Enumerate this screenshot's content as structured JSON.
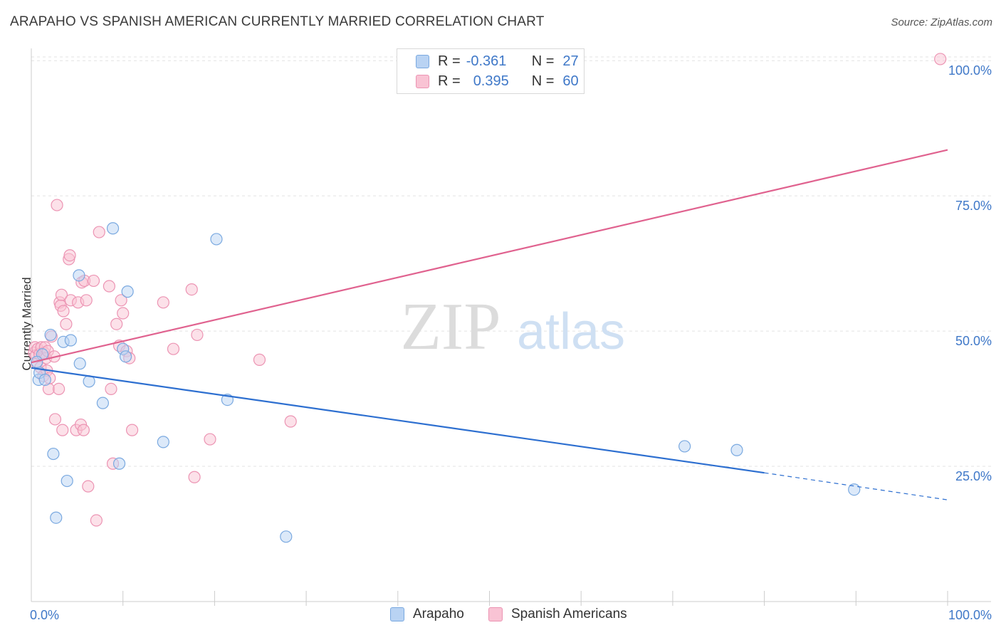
{
  "header": {
    "title": "ARAPAHO VS SPANISH AMERICAN CURRENTLY MARRIED CORRELATION CHART",
    "source": "Source: ZipAtlas.com"
  },
  "watermark": {
    "zip": "ZIP",
    "atlas": "atlas"
  },
  "legend": {
    "rows": [
      {
        "r_label": "R =",
        "r_value": "-0.361",
        "n_label": "N =",
        "n_value": "27"
      },
      {
        "r_label": "R =",
        "r_value": "0.395",
        "n_label": "N =",
        "n_value": "60"
      }
    ]
  },
  "bottom_legend": {
    "arapaho": "Arapaho",
    "spanish": "Spanish Americans"
  },
  "colors": {
    "arapaho_fill": "#b9d3f3",
    "arapaho_stroke": "#7aa9e0",
    "arapaho_line": "#2d6fd0",
    "spanish_fill": "#f9c3d4",
    "spanish_stroke": "#ec94b3",
    "spanish_line": "#e0628f",
    "tick_text": "#3f78c8"
  },
  "chart_data": {
    "type": "scatter",
    "title": "ARAPAHO VS SPANISH AMERICAN CURRENTLY MARRIED CORRELATION CHART",
    "xlabel": "",
    "ylabel": "Currently Married",
    "xlim": [
      0,
      100
    ],
    "ylim": [
      0,
      102
    ],
    "x_tick_labels": [
      "0.0%",
      "100.0%"
    ],
    "y_ticks": [
      {
        "value": 25,
        "label": "25.0%"
      },
      {
        "value": 50,
        "label": "50.0%"
      },
      {
        "value": 75,
        "label": "75.0%"
      },
      {
        "value": 100,
        "label": "100.0%"
      }
    ],
    "series": [
      {
        "name": "Arapaho",
        "r": -0.361,
        "n": 27,
        "trend": {
          "x0": 0,
          "y0": 43.2,
          "x1": 80,
          "y1": 23.8,
          "dash_to_x": 100,
          "dash_to_y": 18.8
        },
        "points": [
          [
            0.8,
            41.0
          ],
          [
            0.9,
            42.3
          ],
          [
            1.5,
            41.0
          ],
          [
            2.1,
            49.3
          ],
          [
            2.4,
            27.3
          ],
          [
            2.7,
            15.5
          ],
          [
            3.5,
            48.0
          ],
          [
            3.9,
            22.3
          ],
          [
            4.3,
            48.3
          ],
          [
            5.2,
            60.3
          ],
          [
            5.3,
            44.0
          ],
          [
            6.3,
            40.7
          ],
          [
            7.8,
            36.7
          ],
          [
            8.9,
            69.0
          ],
          [
            9.6,
            25.5
          ],
          [
            10.0,
            46.7
          ],
          [
            10.3,
            45.3
          ],
          [
            10.5,
            57.3
          ],
          [
            14.4,
            29.5
          ],
          [
            20.2,
            67.0
          ],
          [
            21.4,
            37.3
          ],
          [
            27.8,
            12.0
          ],
          [
            71.3,
            28.7
          ],
          [
            89.8,
            20.7
          ],
          [
            77.0,
            28.0
          ],
          [
            1.2,
            45.7
          ],
          [
            0.6,
            44.3
          ]
        ]
      },
      {
        "name": "Spanish Americans",
        "r": 0.395,
        "n": 60,
        "trend": {
          "x0": 0,
          "y0": 44.2,
          "x1": 100,
          "y1": 83.5
        },
        "points": [
          [
            0.3,
            46.0
          ],
          [
            0.4,
            47.0
          ],
          [
            0.5,
            45.5
          ],
          [
            0.6,
            44.0
          ],
          [
            0.7,
            46.7
          ],
          [
            0.9,
            45.7
          ],
          [
            1.0,
            43.3
          ],
          [
            1.1,
            47.0
          ],
          [
            1.3,
            41.7
          ],
          [
            1.4,
            46.0
          ],
          [
            1.5,
            47.0
          ],
          [
            1.6,
            45.0
          ],
          [
            1.7,
            42.7
          ],
          [
            1.8,
            46.3
          ],
          [
            1.9,
            39.3
          ],
          [
            2.0,
            41.3
          ],
          [
            2.2,
            49.0
          ],
          [
            2.5,
            45.3
          ],
          [
            2.6,
            33.7
          ],
          [
            2.8,
            73.3
          ],
          [
            3.0,
            39.3
          ],
          [
            3.1,
            55.3
          ],
          [
            3.2,
            54.7
          ],
          [
            3.3,
            56.7
          ],
          [
            3.4,
            31.7
          ],
          [
            3.5,
            53.7
          ],
          [
            3.8,
            51.3
          ],
          [
            4.1,
            63.3
          ],
          [
            4.2,
            64.0
          ],
          [
            4.3,
            55.7
          ],
          [
            4.9,
            31.7
          ],
          [
            5.1,
            55.3
          ],
          [
            5.4,
            32.7
          ],
          [
            5.5,
            59.0
          ],
          [
            5.7,
            31.7
          ],
          [
            5.8,
            59.3
          ],
          [
            6.0,
            55.7
          ],
          [
            6.2,
            21.3
          ],
          [
            6.8,
            59.3
          ],
          [
            7.1,
            15.0
          ],
          [
            7.4,
            68.3
          ],
          [
            8.5,
            58.3
          ],
          [
            8.7,
            39.3
          ],
          [
            8.9,
            25.5
          ],
          [
            9.3,
            51.3
          ],
          [
            9.6,
            47.3
          ],
          [
            9.8,
            55.7
          ],
          [
            10.0,
            53.3
          ],
          [
            10.4,
            46.3
          ],
          [
            10.7,
            45.0
          ],
          [
            11.0,
            31.7
          ],
          [
            14.4,
            55.3
          ],
          [
            15.5,
            46.7
          ],
          [
            17.5,
            57.7
          ],
          [
            17.8,
            23.0
          ],
          [
            18.1,
            49.3
          ],
          [
            19.5,
            30.0
          ],
          [
            24.9,
            44.7
          ],
          [
            28.3,
            33.3
          ],
          [
            99.2,
            100.3
          ]
        ]
      }
    ]
  }
}
